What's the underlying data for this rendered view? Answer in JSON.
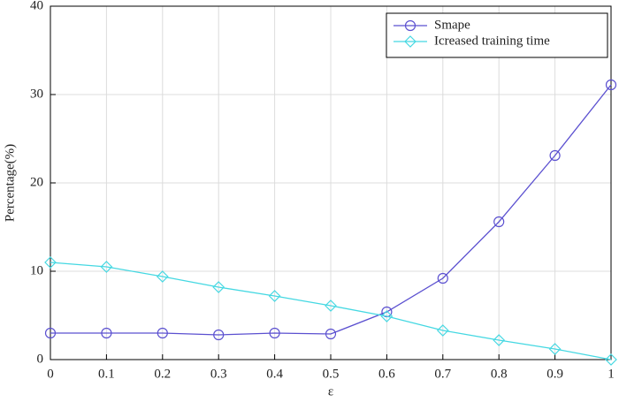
{
  "chart_data": {
    "type": "line",
    "x": [
      0,
      0.1,
      0.2,
      0.3,
      0.4,
      0.5,
      0.6,
      0.7,
      0.8,
      0.9,
      1
    ],
    "series": [
      {
        "name": "Smape",
        "color": "#5b50d0",
        "marker": "circle",
        "values": [
          3.0,
          3.0,
          3.0,
          2.8,
          3.0,
          2.9,
          5.4,
          9.2,
          15.6,
          23.1,
          31.1
        ]
      },
      {
        "name": "Icreased training time",
        "color": "#45d8e2",
        "marker": "diamond",
        "values": [
          11.0,
          10.5,
          9.4,
          8.2,
          7.2,
          6.1,
          4.9,
          3.3,
          2.2,
          1.2,
          0
        ]
      }
    ],
    "xlabel": "ε",
    "ylabel": "Percentage(%)",
    "xlim": [
      0,
      1
    ],
    "xticks": [
      0,
      0.1,
      0.2,
      0.3,
      0.4,
      0.5,
      0.6,
      0.7,
      0.8,
      0.9,
      1
    ],
    "ylim": [
      0,
      40
    ],
    "yticks": [
      0,
      10,
      20,
      30,
      40
    ],
    "grid": true,
    "legend": "top-right"
  }
}
